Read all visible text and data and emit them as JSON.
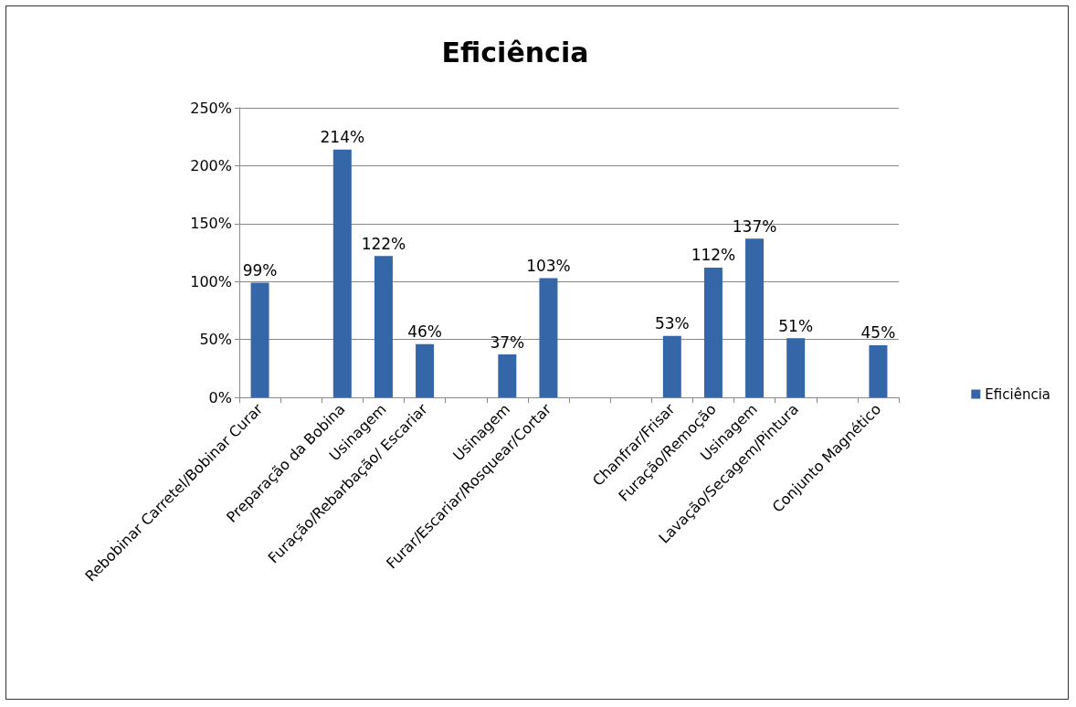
{
  "chart_data": {
    "type": "bar",
    "title": "Eficiência",
    "categories": [
      "Rebobinar Carretel/Bobinar Curar",
      null,
      "Preparação da Bobina",
      "Usinagem",
      "Furação/Rebarbação/ Escariar",
      null,
      "Usinagem",
      "Furar/Escariar/Rosquear/Cortar",
      null,
      null,
      "Chanfrar/Frisar",
      "Furação/Remoção",
      "Usinagem",
      "Lavação/Secagem/Pintura",
      null,
      "Conjunto Magnético"
    ],
    "series": [
      {
        "name": "Eficiência",
        "color": "#3567a8",
        "values": [
          99,
          null,
          214,
          122,
          46,
          null,
          37,
          103,
          null,
          null,
          53,
          112,
          137,
          51,
          null,
          45
        ],
        "value_labels": [
          "99%",
          null,
          "214%",
          "122%",
          "46%",
          null,
          "37%",
          "103%",
          null,
          null,
          "53%",
          "112%",
          "137%",
          "51%",
          null,
          "45%"
        ]
      }
    ],
    "ylim": [
      0,
      250
    ],
    "yticks": [
      {
        "value": 0,
        "label": "0%"
      },
      {
        "value": 50,
        "label": "50%"
      },
      {
        "value": 100,
        "label": "100%"
      },
      {
        "value": 150,
        "label": "150%"
      },
      {
        "value": 200,
        "label": "200%"
      },
      {
        "value": 250,
        "label": "250%"
      }
    ],
    "grid": "y",
    "legend": "right"
  }
}
